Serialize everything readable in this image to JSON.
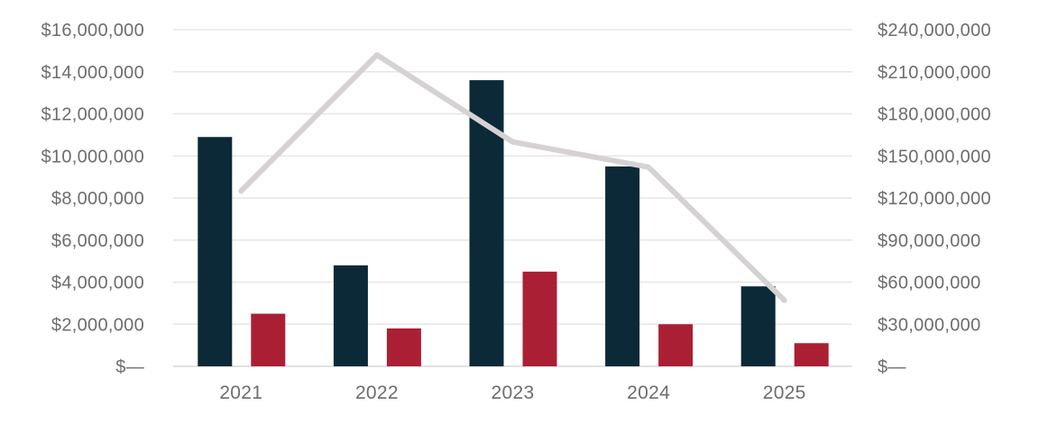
{
  "chart_data": {
    "type": "combo-bar-line",
    "title": "",
    "categories": [
      "2021",
      "2022",
      "2023",
      "2024",
      "2025"
    ],
    "series": [
      {
        "name": "dark-navy-bars",
        "type": "bar",
        "axis": "left",
        "color": "#0c2937",
        "values": [
          10900000,
          4800000,
          13600000,
          9500000,
          3800000
        ]
      },
      {
        "name": "crimson-bars",
        "type": "bar",
        "axis": "left",
        "color": "#ab1f35",
        "values": [
          2500000,
          1800000,
          4500000,
          2000000,
          1100000
        ]
      },
      {
        "name": "gray-trend-line",
        "type": "line",
        "axis": "right",
        "color": "#d6d2d3",
        "values": [
          125000000,
          222000000,
          160000000,
          142000000,
          47000000
        ]
      }
    ],
    "left_axis": {
      "min": 0,
      "max": 16000000,
      "step": 2000000,
      "tick_labels": [
        "$16,000,000",
        "$14,000,000",
        "$12,000,000",
        "$10,000,000",
        "$8,000,000",
        "$6,000,000",
        "$4,000,000",
        "$2,000,000",
        "$—"
      ]
    },
    "right_axis": {
      "min": 0,
      "max": 240000000,
      "step": 30000000,
      "tick_labels": [
        "$240,000,000",
        "$210,000,000",
        "$180,000,000",
        "$150,000,000",
        "$120,000,000",
        "$90,000,000",
        "$60,000,000",
        "$30,000,000",
        "$—"
      ]
    },
    "grid": true,
    "legend": "none",
    "colors": {
      "gridline": "#e7e6e6",
      "baseline": "#dad9d9",
      "tick_label": "#6d6d6d"
    }
  }
}
